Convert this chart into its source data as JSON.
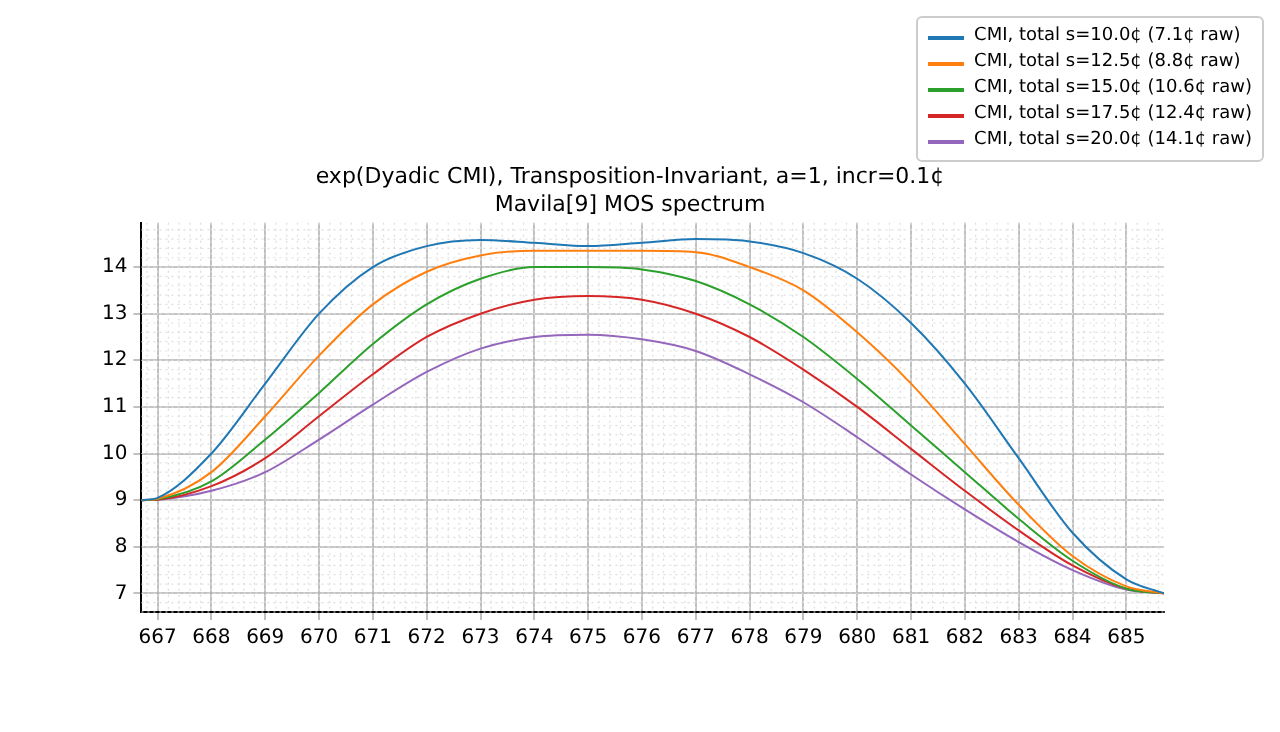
{
  "chart_data": {
    "type": "line",
    "title": "exp(Dyadic CMI), Transposition-Invariant, a=1, incr=0.1¢",
    "subtitle": "Mavila[9] MOS spectrum",
    "x": [
      666.7,
      667,
      668,
      669,
      670,
      671,
      672,
      673,
      674,
      675,
      676,
      677,
      678,
      679,
      680,
      681,
      682,
      683,
      684,
      685,
      685.7
    ],
    "series": [
      {
        "name": "CMI, total s=10.0¢ (7.1¢ raw)",
        "color": "#1f77b4",
        "values": [
          9,
          9.05,
          10.0,
          11.5,
          13.0,
          14.0,
          14.45,
          14.58,
          14.52,
          14.45,
          14.52,
          14.6,
          14.55,
          14.3,
          13.75,
          12.8,
          11.5,
          9.9,
          8.3,
          7.3,
          7
        ]
      },
      {
        "name": "CMI, total s=12.5¢ (8.8¢ raw)",
        "color": "#ff7f0e",
        "values": [
          9,
          9.03,
          9.6,
          10.8,
          12.1,
          13.2,
          13.9,
          14.25,
          14.35,
          14.35,
          14.35,
          14.32,
          14.0,
          13.5,
          12.6,
          11.5,
          10.2,
          8.9,
          7.8,
          7.15,
          7
        ]
      },
      {
        "name": "CMI, total s=15.0¢ (10.6¢ raw)",
        "color": "#2ca02c",
        "values": [
          9,
          9.02,
          9.4,
          10.3,
          11.3,
          12.35,
          13.2,
          13.75,
          14.0,
          14.0,
          13.95,
          13.7,
          13.2,
          12.5,
          11.6,
          10.6,
          9.6,
          8.6,
          7.7,
          7.1,
          7
        ]
      },
      {
        "name": "CMI, total s=17.5¢ (12.4¢ raw)",
        "color": "#d62728",
        "values": [
          9,
          9.01,
          9.3,
          9.9,
          10.8,
          11.7,
          12.5,
          13.0,
          13.3,
          13.38,
          13.3,
          13.0,
          12.5,
          11.8,
          11.0,
          10.1,
          9.2,
          8.35,
          7.6,
          7.1,
          7
        ]
      },
      {
        "name": "CMI, total s=20.0¢ (14.1¢ raw)",
        "color": "#9467bd",
        "values": [
          9,
          9.01,
          9.2,
          9.6,
          10.3,
          11.05,
          11.75,
          12.25,
          12.5,
          12.55,
          12.45,
          12.2,
          11.7,
          11.1,
          10.35,
          9.55,
          8.8,
          8.1,
          7.5,
          7.08,
          7
        ]
      }
    ],
    "xlim": [
      666.7,
      685.7
    ],
    "ylim": [
      6.6,
      14.95
    ],
    "xticks": [
      667,
      668,
      669,
      670,
      671,
      672,
      673,
      674,
      675,
      676,
      677,
      678,
      679,
      680,
      681,
      682,
      683,
      684,
      685
    ],
    "yticks": [
      7,
      8,
      9,
      10,
      11,
      12,
      13,
      14
    ],
    "grid": true,
    "legend": "top right"
  }
}
